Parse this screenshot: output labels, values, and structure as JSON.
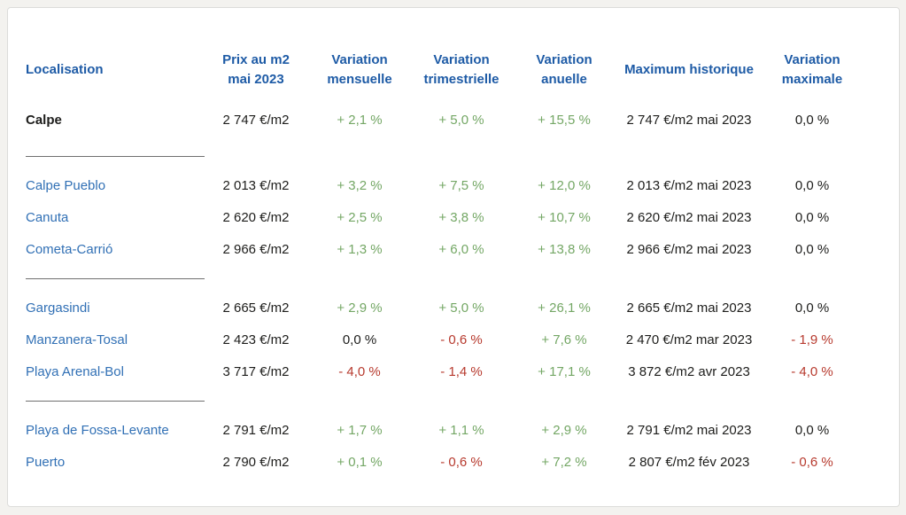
{
  "colors": {
    "header_blue": "#1e5ba6",
    "link_blue": "#3170b5",
    "positive_green": "#74a765",
    "negative_red": "#b73a2e",
    "text_dark": "#1d1d1b",
    "divider_gray": "#6f6f6f",
    "page_background": "#f3f2ef",
    "card_background": "#ffffff"
  },
  "table": {
    "columns": [
      {
        "line1": "Localisation",
        "line2": ""
      },
      {
        "line1": "Prix au m2",
        "line2": "mai 2023"
      },
      {
        "line1": "Variation",
        "line2": "mensuelle"
      },
      {
        "line1": "Variation",
        "line2": "trimestrielle"
      },
      {
        "line1": "Variation",
        "line2": "anuelle"
      },
      {
        "line1": "Maximum historique",
        "line2": ""
      },
      {
        "line1": "Variation",
        "line2": "maximale"
      }
    ],
    "rows": [
      {
        "name": "Calpe",
        "emphasis": "bold",
        "prix": "2 747 €/m2",
        "var_mensuelle": {
          "text": "+ 2,1 %",
          "tone": "pos"
        },
        "var_trimestrielle": {
          "text": "+ 5,0 %",
          "tone": "pos"
        },
        "var_anuelle": {
          "text": "+ 15,5 %",
          "tone": "pos"
        },
        "max_historique": "2 747 €/m2 mai 2023",
        "var_maximale": {
          "text": "0,0 %",
          "tone": "neu"
        },
        "divider_after": true
      },
      {
        "name": "Calpe Pueblo",
        "emphasis": "link",
        "prix": "2 013 €/m2",
        "var_mensuelle": {
          "text": "+ 3,2 %",
          "tone": "pos"
        },
        "var_trimestrielle": {
          "text": "+ 7,5 %",
          "tone": "pos"
        },
        "var_anuelle": {
          "text": "+ 12,0 %",
          "tone": "pos"
        },
        "max_historique": "2 013 €/m2 mai 2023",
        "var_maximale": {
          "text": "0,0 %",
          "tone": "neu"
        },
        "divider_after": false
      },
      {
        "name": "Canuta",
        "emphasis": "link",
        "prix": "2 620 €/m2",
        "var_mensuelle": {
          "text": "+ 2,5 %",
          "tone": "pos"
        },
        "var_trimestrielle": {
          "text": "+ 3,8 %",
          "tone": "pos"
        },
        "var_anuelle": {
          "text": "+ 10,7 %",
          "tone": "pos"
        },
        "max_historique": "2 620 €/m2 mai 2023",
        "var_maximale": {
          "text": "0,0 %",
          "tone": "neu"
        },
        "divider_after": false
      },
      {
        "name": "Cometa-Carrió",
        "emphasis": "link",
        "prix": "2 966 €/m2",
        "var_mensuelle": {
          "text": "+ 1,3 %",
          "tone": "pos"
        },
        "var_trimestrielle": {
          "text": "+ 6,0 %",
          "tone": "pos"
        },
        "var_anuelle": {
          "text": "+ 13,8 %",
          "tone": "pos"
        },
        "max_historique": "2 966 €/m2 mai 2023",
        "var_maximale": {
          "text": "0,0 %",
          "tone": "neu"
        },
        "divider_after": true
      },
      {
        "name": "Gargasindi",
        "emphasis": "link",
        "prix": "2 665 €/m2",
        "var_mensuelle": {
          "text": "+ 2,9 %",
          "tone": "pos"
        },
        "var_trimestrielle": {
          "text": "+ 5,0 %",
          "tone": "pos"
        },
        "var_anuelle": {
          "text": "+ 26,1 %",
          "tone": "pos"
        },
        "max_historique": "2 665 €/m2 mai 2023",
        "var_maximale": {
          "text": "0,0 %",
          "tone": "neu"
        },
        "divider_after": false
      },
      {
        "name": "Manzanera-Tosal",
        "emphasis": "link",
        "prix": "2 423 €/m2",
        "var_mensuelle": {
          "text": "0,0 %",
          "tone": "neu"
        },
        "var_trimestrielle": {
          "text": "- 0,6 %",
          "tone": "neg"
        },
        "var_anuelle": {
          "text": "+ 7,6 %",
          "tone": "pos"
        },
        "max_historique": "2 470 €/m2 mar 2023",
        "var_maximale": {
          "text": "- 1,9 %",
          "tone": "neg"
        },
        "divider_after": false
      },
      {
        "name": "Playa Arenal-Bol",
        "emphasis": "link",
        "prix": "3 717 €/m2",
        "var_mensuelle": {
          "text": "- 4,0 %",
          "tone": "neg"
        },
        "var_trimestrielle": {
          "text": "- 1,4 %",
          "tone": "neg"
        },
        "var_anuelle": {
          "text": "+ 17,1 %",
          "tone": "pos"
        },
        "max_historique": "3 872 €/m2 avr 2023",
        "var_maximale": {
          "text": "- 4,0 %",
          "tone": "neg"
        },
        "divider_after": true
      },
      {
        "name": "Playa de Fossa-Levante",
        "emphasis": "link",
        "prix": "2 791 €/m2",
        "var_mensuelle": {
          "text": "+ 1,7 %",
          "tone": "pos"
        },
        "var_trimestrielle": {
          "text": "+ 1,1 %",
          "tone": "pos"
        },
        "var_anuelle": {
          "text": "+ 2,9 %",
          "tone": "pos"
        },
        "max_historique": "2 791 €/m2 mai 2023",
        "var_maximale": {
          "text": "0,0 %",
          "tone": "neu"
        },
        "divider_after": false
      },
      {
        "name": "Puerto",
        "emphasis": "link",
        "prix": "2 790 €/m2",
        "var_mensuelle": {
          "text": "+ 0,1 %",
          "tone": "pos"
        },
        "var_trimestrielle": {
          "text": "- 0,6 %",
          "tone": "neg"
        },
        "var_anuelle": {
          "text": "+ 7,2 %",
          "tone": "pos"
        },
        "max_historique": "2 807 €/m2 fév 2023",
        "var_maximale": {
          "text": "- 0,6 %",
          "tone": "neg"
        },
        "divider_after": false
      }
    ]
  }
}
